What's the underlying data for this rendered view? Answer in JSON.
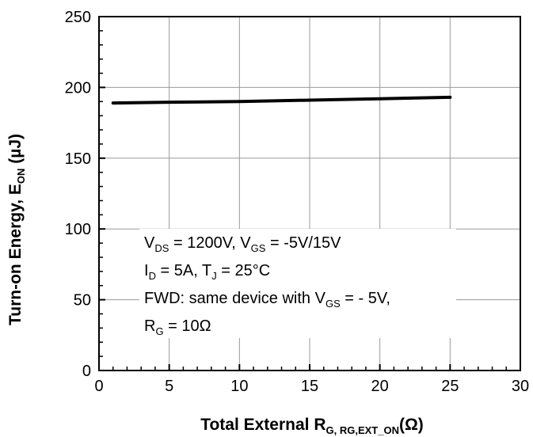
{
  "chart_data": {
    "type": "line",
    "xlabel": {
      "main": "Total External R",
      "sub": "G, RG,EXT_ON",
      "tail": "(Ω)"
    },
    "ylabel": {
      "main": "Turn-on Energy, E",
      "sub": "ON",
      "tail": " (µJ)"
    },
    "xlim": [
      0,
      30
    ],
    "ylim": [
      0,
      250
    ],
    "xticks": [
      "0",
      "5",
      "10",
      "15",
      "20",
      "25",
      "30"
    ],
    "yticks": [
      "0",
      "50",
      "100",
      "150",
      "200",
      "250"
    ],
    "grid": true,
    "series": [
      {
        "x": [
          1,
          5,
          10,
          15,
          20,
          25
        ],
        "y": [
          189,
          189.5,
          190,
          191,
          192,
          193
        ]
      }
    ],
    "annotations": {
      "line1": {
        "v": "V",
        "ds": "DS",
        "a": " = 1200V, V",
        "gs": "GS",
        "b": " = -5V/15V"
      },
      "line2": {
        "i": "I",
        "d": "D",
        "a": " = 5A, T",
        "j": "J",
        "b": " = 25°C"
      },
      "line3": {
        "a": "FWD: same device with V",
        "gs": "GS",
        "b": " = - 5V,"
      },
      "line4": {
        "r": "R",
        "g": "G",
        "a": " = 10Ω"
      }
    }
  }
}
